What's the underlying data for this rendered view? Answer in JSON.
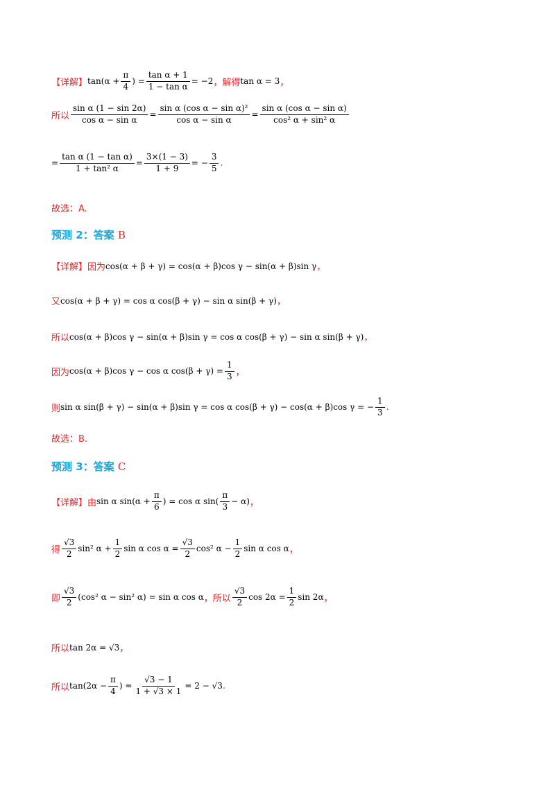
{
  "section1": {
    "detail_label": "【详解】",
    "text_jiede": "，解得",
    "text_suoyi": "所以",
    "math_tan_left": "tan(α + ",
    "math_pi": "π",
    "math_4": "4",
    "math_close": ") =",
    "math_frac_num": "tan α + 1",
    "math_frac_den": "1 − tan α",
    "math_eq_minus2": "= −2",
    "math_tan3": "tan α = 3",
    "comma": "，",
    "row2_f1_num": "sin α (1 − sin 2α)",
    "row2_f1_den": "cos α − sin α",
    "row2_f2_num": "sin α (cos α − sin α)²",
    "row2_f2_den": "cos α − sin α",
    "row2_f3_num": "sin α (cos α − sin α)",
    "row2_f3_den": "cos² α + sin² α",
    "eq": "=",
    "row3_f1_num": "tan α (1 − tan α)",
    "row3_f1_den": "1 + tan² α",
    "row3_f2_num": "3×(1 − 3)",
    "row3_f2_den": "1 + 9",
    "row3_minus": "= −",
    "row3_f3_num": "3",
    "row3_f3_den": "5",
    "period": ".",
    "answer": "故选：A."
  },
  "section2": {
    "heading_text": "预测 2：答案 ",
    "heading_letter": "B",
    "detail_label": "【详解】因为",
    "line1_math": "cos(α + β + γ) = cos(α + β)cos γ − sin(α + β)sin γ",
    "comma": "，",
    "line2_label": "又",
    "line2_math": "cos(α + β + γ) = cos α cos(β + γ) − sin α sin(β + γ)",
    "line3_label": "所以",
    "line3_math": "cos(α + β)cos γ − sin(α + β)sin γ = cos α cos(β + γ) − sin α sin(β + γ)",
    "line4_label": "因为",
    "line4_math": "cos(α + β)cos γ − cos α cos(β + γ) =",
    "one": "1",
    "three": "3",
    "line5_label": "则",
    "line5_math": "sin α sin(β + γ) − sin(α + β)sin γ = cos α cos(β + γ) − cos(α + β)cos γ = −",
    "period": ".",
    "answer": "故选：B."
  },
  "section3": {
    "heading_text": "预测 3：答案 ",
    "heading_letter": "C",
    "detail_label": "【详解】由",
    "l1_a": "sin α sin(α + ",
    "l1_b": ") = cos α sin(",
    "l1_c": " − α)",
    "pi": "π",
    "six": "6",
    "three": "3",
    "comma": "，",
    "l2_label": "得",
    "sqrt3": "√3",
    "two": "2",
    "one": "1",
    "l2_a": "sin² α +",
    "l2_b": "sin α cos α =",
    "l2_c": "cos² α −",
    "l2_d": "sin α cos α",
    "l3_label": "即",
    "l3_a": "(cos² α − sin² α) = sin α cos α",
    "l3_mid": "，所以",
    "l3_b": "cos 2α =",
    "l3_c": "sin 2α",
    "l4_label": "所以",
    "l4_math": "tan 2α = √3",
    "l5_label": "所以",
    "l5_a": "tan(2α −",
    "four": "4",
    "l5_b": ") =",
    "l5_num": "√3 − 1",
    "l5_den": "1 + √3 × 1",
    "l5_c": "= 2 − √3",
    "period": "."
  }
}
